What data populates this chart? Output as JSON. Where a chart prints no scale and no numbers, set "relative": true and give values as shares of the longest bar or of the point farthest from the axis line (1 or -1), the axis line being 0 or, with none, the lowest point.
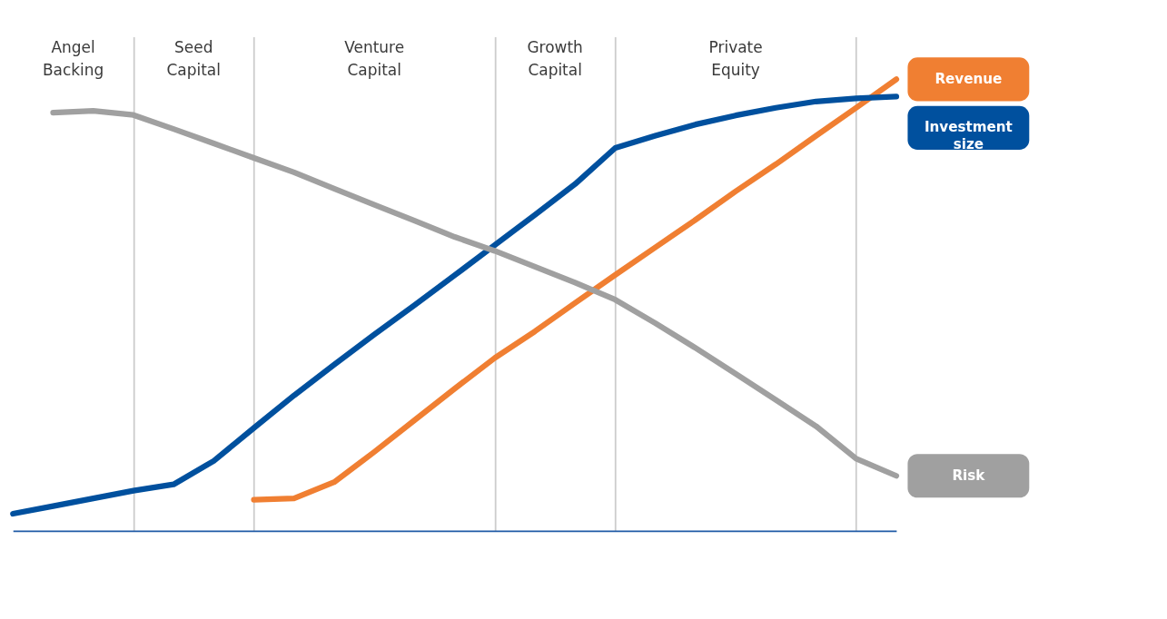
{
  "chart_data": {
    "type": "line",
    "relative": true,
    "tick_labels": false,
    "line_style": "solid",
    "marker": "none",
    "categories": [
      null,
      null,
      null,
      null,
      null,
      null,
      null,
      null,
      null,
      null,
      null,
      null,
      null,
      null,
      null,
      null,
      null,
      null,
      null,
      null,
      null,
      null,
      null
    ],
    "annotations": [
      "Angel Backing",
      "Seed Capital",
      "Venture Capital",
      "Growth Capital",
      "Private Equity"
    ],
    "grid": "x",
    "series": [
      {
        "name": "Revenue",
        "color": "#f07f32",
        "values": [
          null,
          null,
          null,
          null,
          null,
          null,
          0.069,
          0.072,
          0.108,
          0.175,
          0.245,
          0.315,
          0.383,
          0.442,
          0.505,
          0.567,
          0.628,
          0.689,
          0.752,
          0.812,
          0.875,
          0.937,
          1.0
        ]
      },
      {
        "name": "Investment size",
        "color": "#00509e",
        "values": [
          0.038,
          0.055,
          0.072,
          0.089,
          0.103,
          0.155,
          0.228,
          0.3,
          0.368,
          0.435,
          0.5,
          0.566,
          0.633,
          0.7,
          0.768,
          0.848,
          0.875,
          0.9,
          0.92,
          0.937,
          0.951,
          0.958,
          0.962
        ]
      },
      {
        "name": "Risk",
        "color": "#a0a0a0",
        "values": [
          null,
          0.926,
          0.93,
          0.921,
          0.89,
          0.858,
          0.826,
          0.794,
          0.758,
          0.722,
          0.687,
          0.651,
          0.62,
          0.585,
          0.55,
          0.512,
          0.46,
          0.405,
          0.348,
          0.29,
          0.232,
          0.16,
          0.122
        ]
      }
    ]
  }
}
